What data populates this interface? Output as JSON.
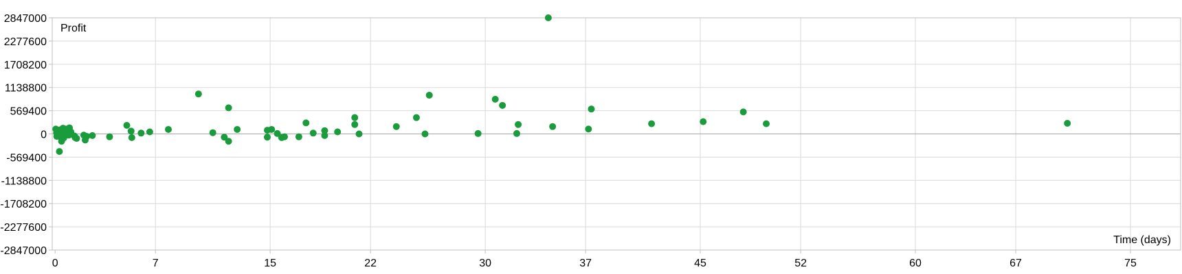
{
  "chart_data": {
    "type": "scatter",
    "title": "",
    "xlabel": "Time (days)",
    "ylabel": "Profit",
    "xlim": [
      -0.2,
      78.5
    ],
    "ylim": [
      -2847000,
      2847000
    ],
    "x_ticks": [
      {
        "value": 0,
        "label": "0"
      },
      {
        "value": 7,
        "label": "7"
      },
      {
        "value": 15,
        "label": "15"
      },
      {
        "value": 22,
        "label": "22"
      },
      {
        "value": 30,
        "label": "30"
      },
      {
        "value": 37,
        "label": "37"
      },
      {
        "value": 45,
        "label": "45"
      },
      {
        "value": 52,
        "label": "52"
      },
      {
        "value": 60,
        "label": "60"
      },
      {
        "value": 67,
        "label": "67"
      },
      {
        "value": 75,
        "label": "75"
      }
    ],
    "y_ticks": [
      {
        "value": 2847000,
        "label": "2847000"
      },
      {
        "value": 2277600,
        "label": "2277600"
      },
      {
        "value": 1708200,
        "label": "1708200"
      },
      {
        "value": 1138800,
        "label": "1138800"
      },
      {
        "value": 569400,
        "label": "569400"
      },
      {
        "value": 0,
        "label": "0"
      },
      {
        "value": -569400,
        "label": "-569400"
      },
      {
        "value": -1138800,
        "label": "-1138800"
      },
      {
        "value": -1708200,
        "label": "-1708200"
      },
      {
        "value": -2277600,
        "label": "-2277600"
      },
      {
        "value": -2847000,
        "label": "-2847000"
      }
    ],
    "grid": true,
    "legend": "none",
    "marker_color": "#1a9b3c",
    "grid_color": "#d9d9d9",
    "zero_line_color": "#a6a6a6",
    "points": [
      {
        "x": 0.05,
        "y": 120000
      },
      {
        "x": 0.1,
        "y": 30000
      },
      {
        "x": 0.12,
        "y": -60000
      },
      {
        "x": 0.15,
        "y": 80000
      },
      {
        "x": 0.2,
        "y": -20000
      },
      {
        "x": 0.25,
        "y": 60000
      },
      {
        "x": 0.3,
        "y": -430000
      },
      {
        "x": 0.35,
        "y": 100000
      },
      {
        "x": 0.4,
        "y": -80000
      },
      {
        "x": 0.45,
        "y": -180000
      },
      {
        "x": 0.5,
        "y": 30000
      },
      {
        "x": 0.55,
        "y": 140000
      },
      {
        "x": 0.6,
        "y": -100000
      },
      {
        "x": 0.65,
        "y": 60000
      },
      {
        "x": 0.7,
        "y": -40000
      },
      {
        "x": 0.75,
        "y": 120000
      },
      {
        "x": 0.8,
        "y": 90000
      },
      {
        "x": 0.85,
        "y": 110000
      },
      {
        "x": 0.9,
        "y": 20000
      },
      {
        "x": 0.95,
        "y": -30000
      },
      {
        "x": 1.0,
        "y": 150000
      },
      {
        "x": 1.1,
        "y": 50000
      },
      {
        "x": 1.35,
        "y": -50000
      },
      {
        "x": 1.4,
        "y": -90000
      },
      {
        "x": 1.5,
        "y": -110000
      },
      {
        "x": 2.0,
        "y": -30000
      },
      {
        "x": 2.1,
        "y": -150000
      },
      {
        "x": 2.2,
        "y": -60000
      },
      {
        "x": 2.6,
        "y": -40000
      },
      {
        "x": 3.8,
        "y": -70000
      },
      {
        "x": 5.0,
        "y": 210000
      },
      {
        "x": 5.3,
        "y": 70000
      },
      {
        "x": 5.35,
        "y": -90000
      },
      {
        "x": 6.0,
        "y": 20000
      },
      {
        "x": 6.6,
        "y": 50000
      },
      {
        "x": 7.9,
        "y": 110000
      },
      {
        "x": 10.0,
        "y": 980000
      },
      {
        "x": 11.0,
        "y": 30000
      },
      {
        "x": 11.8,
        "y": -80000
      },
      {
        "x": 12.1,
        "y": -180000
      },
      {
        "x": 12.1,
        "y": 640000
      },
      {
        "x": 12.7,
        "y": 110000
      },
      {
        "x": 14.8,
        "y": 90000
      },
      {
        "x": 14.8,
        "y": -80000
      },
      {
        "x": 15.1,
        "y": 110000
      },
      {
        "x": 15.5,
        "y": 10000
      },
      {
        "x": 15.8,
        "y": -90000
      },
      {
        "x": 16.0,
        "y": -70000
      },
      {
        "x": 17.0,
        "y": -70000
      },
      {
        "x": 17.5,
        "y": 270000
      },
      {
        "x": 18.0,
        "y": 20000
      },
      {
        "x": 18.8,
        "y": -40000
      },
      {
        "x": 18.8,
        "y": 80000
      },
      {
        "x": 19.7,
        "y": 50000
      },
      {
        "x": 20.9,
        "y": 400000
      },
      {
        "x": 20.9,
        "y": 230000
      },
      {
        "x": 21.2,
        "y": 0
      },
      {
        "x": 23.8,
        "y": 180000
      },
      {
        "x": 25.2,
        "y": 400000
      },
      {
        "x": 25.8,
        "y": 0
      },
      {
        "x": 26.1,
        "y": 950000
      },
      {
        "x": 29.5,
        "y": 10000
      },
      {
        "x": 30.7,
        "y": 850000
      },
      {
        "x": 31.2,
        "y": 700000
      },
      {
        "x": 32.2,
        "y": 10000
      },
      {
        "x": 32.3,
        "y": 230000
      },
      {
        "x": 34.4,
        "y": 2847000
      },
      {
        "x": 34.7,
        "y": 180000
      },
      {
        "x": 37.2,
        "y": 120000
      },
      {
        "x": 37.4,
        "y": 610000
      },
      {
        "x": 41.6,
        "y": 250000
      },
      {
        "x": 45.2,
        "y": 300000
      },
      {
        "x": 48.0,
        "y": 540000
      },
      {
        "x": 49.6,
        "y": 250000
      },
      {
        "x": 70.6,
        "y": 260000
      }
    ]
  }
}
